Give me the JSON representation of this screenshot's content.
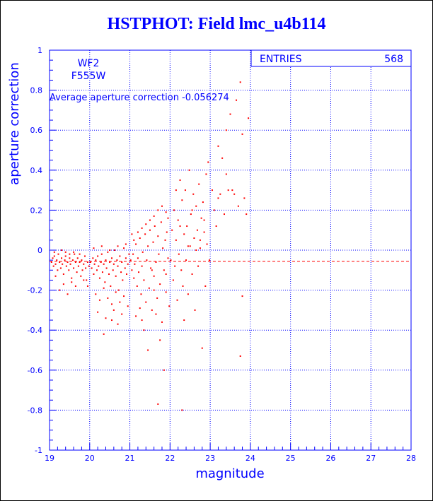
{
  "title": "HSTPHOT: Field lmc_u4b114",
  "stats_box": {
    "label": "ENTRIES",
    "value": "568"
  },
  "annotations": {
    "camera": "WF2",
    "filter": "F555W",
    "average_text": "Average aperture correction -0.056274"
  },
  "colors": {
    "axes": "#0000ff",
    "grid": "#0000ff",
    "points": "#ff0000",
    "mean_line": "#ff0000",
    "title": "#0000ff"
  },
  "chart_data": {
    "type": "scatter",
    "title": "HSTPHOT: Field lmc_u4b114",
    "xlabel": "magnitude",
    "ylabel": "aperture correction",
    "xlim": [
      19,
      28
    ],
    "ylim": [
      -1,
      1
    ],
    "x_ticks": [
      19,
      20,
      21,
      22,
      23,
      24,
      25,
      26,
      27,
      28
    ],
    "y_ticks": [
      -1,
      -0.8,
      -0.6,
      -0.4,
      -0.2,
      0,
      0.2,
      0.4,
      0.6,
      0.8,
      1
    ],
    "grid": true,
    "reference_line": {
      "y": -0.056274,
      "style": "dashed"
    },
    "series": [
      {
        "points": [
          [
            19.05,
            -0.06
          ],
          [
            19.08,
            -0.04
          ],
          [
            19.1,
            -0.08
          ],
          [
            19.12,
            -0.03
          ],
          [
            19.15,
            -0.07
          ],
          [
            19.18,
            -0.05
          ],
          [
            19.2,
            -0.1
          ],
          [
            19.22,
            -0.02
          ],
          [
            19.25,
            -0.06
          ],
          [
            19.28,
            -0.09
          ],
          [
            19.3,
            -0.04
          ],
          [
            19.32,
            -0.07
          ],
          [
            19.35,
            -0.12
          ],
          [
            19.38,
            -0.05
          ],
          [
            19.4,
            -0.03
          ],
          [
            19.42,
            -0.08
          ],
          [
            19.45,
            -0.06
          ],
          [
            19.48,
            -0.1
          ],
          [
            19.5,
            -0.04
          ],
          [
            19.52,
            -0.07
          ],
          [
            19.55,
            -0.14
          ],
          [
            19.58,
            -0.05
          ],
          [
            19.6,
            -0.09
          ],
          [
            19.62,
            -0.02
          ],
          [
            19.65,
            -0.06
          ],
          [
            19.68,
            -0.11
          ],
          [
            19.7,
            -0.04
          ],
          [
            19.72,
            -0.08
          ],
          [
            19.75,
            -0.06
          ],
          [
            19.78,
            -0.13
          ],
          [
            19.8,
            -0.05
          ],
          [
            19.82,
            -0.1
          ],
          [
            19.85,
            -0.07
          ],
          [
            19.88,
            -0.03
          ],
          [
            19.9,
            -0.09
          ],
          [
            19.92,
            -0.15
          ],
          [
            19.95,
            -0.06
          ],
          [
            19.98,
            -0.08
          ],
          [
            19.15,
            -0.13
          ],
          [
            19.25,
            -0.2
          ],
          [
            19.35,
            -0.17
          ],
          [
            19.45,
            -0.22
          ],
          [
            19.55,
            -0.16
          ],
          [
            19.65,
            -0.18
          ],
          [
            19.75,
            -0.02
          ],
          [
            19.85,
            -0.15
          ],
          [
            19.95,
            -0.18
          ],
          [
            19.4,
            -0.01
          ],
          [
            19.5,
            -0.02
          ],
          [
            19.3,
            0.0
          ],
          [
            19.12,
            -0.01
          ],
          [
            19.6,
            -0.01
          ],
          [
            20.02,
            -0.06
          ],
          [
            20.05,
            -0.09
          ],
          [
            20.08,
            -0.04
          ],
          [
            20.1,
            -0.12
          ],
          [
            20.12,
            -0.07
          ],
          [
            20.15,
            -0.05
          ],
          [
            20.18,
            -0.1
          ],
          [
            20.2,
            -0.03
          ],
          [
            20.22,
            -0.08
          ],
          [
            20.25,
            -0.14
          ],
          [
            20.28,
            -0.06
          ],
          [
            20.3,
            -0.02
          ],
          [
            20.32,
            -0.11
          ],
          [
            20.35,
            -0.07
          ],
          [
            20.38,
            -0.16
          ],
          [
            20.4,
            -0.05
          ],
          [
            20.42,
            -0.09
          ],
          [
            20.45,
            -0.01
          ],
          [
            20.48,
            -0.12
          ],
          [
            20.5,
            -0.06
          ],
          [
            20.52,
            -0.18
          ],
          [
            20.55,
            -0.04
          ],
          [
            20.58,
            -0.1
          ],
          [
            20.6,
            -0.07
          ],
          [
            20.62,
            0.0
          ],
          [
            20.65,
            -0.13
          ],
          [
            20.68,
            -0.05
          ],
          [
            20.7,
            -0.08
          ],
          [
            20.72,
            -0.2
          ],
          [
            20.75,
            -0.03
          ],
          [
            20.78,
            -0.11
          ],
          [
            20.8,
            -0.06
          ],
          [
            20.82,
            -0.15
          ],
          [
            20.85,
            0.01
          ],
          [
            20.88,
            -0.09
          ],
          [
            20.9,
            -0.04
          ],
          [
            20.92,
            -0.12
          ],
          [
            20.95,
            -0.07
          ],
          [
            20.98,
            -0.02
          ],
          [
            20.15,
            -0.22
          ],
          [
            20.25,
            -0.25
          ],
          [
            20.35,
            -0.19
          ],
          [
            20.45,
            -0.24
          ],
          [
            20.55,
            -0.27
          ],
          [
            20.65,
            -0.21
          ],
          [
            20.75,
            -0.26
          ],
          [
            20.85,
            -0.23
          ],
          [
            20.95,
            -0.28
          ],
          [
            20.2,
            -0.31
          ],
          [
            20.4,
            -0.34
          ],
          [
            20.6,
            -0.3
          ],
          [
            20.8,
            -0.32
          ],
          [
            20.35,
            -0.42
          ],
          [
            20.7,
            -0.37
          ],
          [
            20.1,
            0.01
          ],
          [
            20.3,
            0.02
          ],
          [
            20.5,
            0.0
          ],
          [
            20.7,
            0.02
          ],
          [
            20.9,
            0.03
          ],
          [
            20.55,
            -0.35
          ],
          [
            21.02,
            -0.05
          ],
          [
            21.05,
            -0.1
          ],
          [
            21.08,
            -0.02
          ],
          [
            21.1,
            -0.14
          ],
          [
            21.12,
            -0.07
          ],
          [
            21.15,
            0.03
          ],
          [
            21.18,
            -0.18
          ],
          [
            21.2,
            -0.04
          ],
          [
            21.22,
            -0.11
          ],
          [
            21.25,
            0.06
          ],
          [
            21.28,
            -0.22
          ],
          [
            21.3,
            -0.08
          ],
          [
            21.32,
            -0.01
          ],
          [
            21.35,
            -0.15
          ],
          [
            21.38,
            0.08
          ],
          [
            21.4,
            -0.26
          ],
          [
            21.42,
            -0.05
          ],
          [
            21.45,
            0.02
          ],
          [
            21.48,
            -0.19
          ],
          [
            21.5,
            0.1
          ],
          [
            21.52,
            -0.09
          ],
          [
            21.55,
            -0.3
          ],
          [
            21.58,
            0.04
          ],
          [
            21.6,
            -0.13
          ],
          [
            21.62,
            0.12
          ],
          [
            21.65,
            -0.06
          ],
          [
            21.68,
            -0.24
          ],
          [
            21.7,
            0.07
          ],
          [
            21.72,
            -0.02
          ],
          [
            21.75,
            -0.17
          ],
          [
            21.78,
            0.14
          ],
          [
            21.8,
            -0.36
          ],
          [
            21.82,
            0.01
          ],
          [
            21.85,
            -0.1
          ],
          [
            21.88,
            0.05
          ],
          [
            21.9,
            -0.21
          ],
          [
            21.92,
            0.09
          ],
          [
            21.95,
            -0.04
          ],
          [
            21.98,
            -0.28
          ],
          [
            21.1,
            0.05
          ],
          [
            21.2,
            0.09
          ],
          [
            21.3,
            0.11
          ],
          [
            21.4,
            0.13
          ],
          [
            21.5,
            0.15
          ],
          [
            21.6,
            0.17
          ],
          [
            21.7,
            0.2
          ],
          [
            21.8,
            0.22
          ],
          [
            21.9,
            0.19
          ],
          [
            21.15,
            -0.33
          ],
          [
            21.35,
            -0.4
          ],
          [
            21.45,
            -0.5
          ],
          [
            21.65,
            -0.32
          ],
          [
            21.75,
            -0.45
          ],
          [
            21.25,
            -0.29
          ],
          [
            21.85,
            -0.6
          ],
          [
            21.7,
            -0.77
          ],
          [
            21.55,
            -0.1
          ],
          [
            21.95,
            0.16
          ],
          [
            21.05,
            0.08
          ],
          [
            21.3,
            -0.35
          ],
          [
            21.6,
            -0.2
          ],
          [
            21.9,
            -0.12
          ],
          [
            22.02,
            -0.05
          ],
          [
            22.05,
            0.1
          ],
          [
            22.08,
            -0.15
          ],
          [
            22.1,
            0.2
          ],
          [
            22.12,
            -0.08
          ],
          [
            22.15,
            0.05
          ],
          [
            22.18,
            -0.25
          ],
          [
            22.2,
            0.15
          ],
          [
            22.22,
            -0.02
          ],
          [
            22.25,
            0.35
          ],
          [
            22.28,
            -0.1
          ],
          [
            22.3,
            0.25
          ],
          [
            22.32,
            -0.18
          ],
          [
            22.35,
            0.08
          ],
          [
            22.38,
            0.3
          ],
          [
            22.4,
            -0.05
          ],
          [
            22.42,
            0.12
          ],
          [
            22.45,
            -0.22
          ],
          [
            22.48,
            0.4
          ],
          [
            22.5,
            0.02
          ],
          [
            22.52,
            0.18
          ],
          [
            22.55,
            -0.12
          ],
          [
            22.58,
            0.28
          ],
          [
            22.6,
            0.06
          ],
          [
            22.62,
            -0.3
          ],
          [
            22.65,
            0.22
          ],
          [
            22.68,
            0.1
          ],
          [
            22.7,
            -0.08
          ],
          [
            22.72,
            0.33
          ],
          [
            22.75,
            0.01
          ],
          [
            22.78,
            0.16
          ],
          [
            22.8,
            -0.49
          ],
          [
            22.82,
            0.24
          ],
          [
            22.85,
            0.09
          ],
          [
            22.88,
            -0.18
          ],
          [
            22.9,
            0.38
          ],
          [
            22.92,
            0.03
          ],
          [
            22.95,
            0.44
          ],
          [
            22.98,
            -0.05
          ],
          [
            22.3,
            -0.8
          ],
          [
            22.15,
            0.3
          ],
          [
            22.35,
            -0.35
          ],
          [
            22.55,
            0.2
          ],
          [
            22.75,
            0.05
          ],
          [
            22.45,
            0.02
          ],
          [
            22.25,
            0.12
          ],
          [
            22.65,
            0.0
          ],
          [
            22.85,
            0.15
          ],
          [
            23.05,
            0.3
          ],
          [
            23.1,
            0.2
          ],
          [
            23.15,
            0.12
          ],
          [
            23.2,
            0.52
          ],
          [
            23.25,
            0.28
          ],
          [
            23.3,
            0.46
          ],
          [
            23.35,
            0.18
          ],
          [
            23.4,
            0.6
          ],
          [
            23.45,
            0.3
          ],
          [
            23.5,
            0.68
          ],
          [
            23.55,
            0.3
          ],
          [
            23.6,
            0.28
          ],
          [
            23.65,
            0.75
          ],
          [
            23.7,
            0.22
          ],
          [
            23.75,
            0.84
          ],
          [
            23.8,
            0.58
          ],
          [
            23.85,
            0.26
          ],
          [
            23.9,
            0.18
          ],
          [
            23.95,
            0.66
          ],
          [
            23.75,
            -0.53
          ],
          [
            23.8,
            -0.23
          ],
          [
            23.2,
            0.26
          ],
          [
            23.4,
            0.38
          ]
        ]
      }
    ]
  }
}
